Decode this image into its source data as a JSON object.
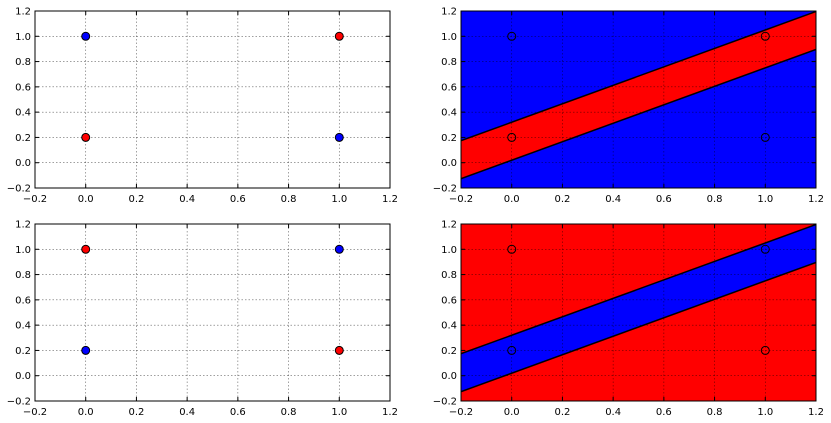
{
  "chart_data": [
    {
      "type": "scatter",
      "xlim": [
        -0.2,
        1.2
      ],
      "ylim": [
        -0.2,
        1.2
      ],
      "xticks": [
        "−0.2",
        "0.0",
        "0.2",
        "0.4",
        "0.6",
        "0.8",
        "1.0",
        "1.2"
      ],
      "yticks": [
        "−0.2",
        "0.0",
        "0.2",
        "0.4",
        "0.6",
        "0.8",
        "1.0",
        "1.2"
      ],
      "grid": true,
      "points": [
        {
          "x": 0.0,
          "y": 1.0,
          "color": "#0000ff"
        },
        {
          "x": 1.0,
          "y": 1.0,
          "color": "#ff0000"
        },
        {
          "x": 0.0,
          "y": 0.2,
          "color": "#ff0000"
        },
        {
          "x": 1.0,
          "y": 0.2,
          "color": "#0000ff"
        }
      ]
    },
    {
      "type": "area",
      "xlim": [
        -0.2,
        1.2
      ],
      "ylim": [
        -0.2,
        1.2
      ],
      "xticks": [
        "−0.2",
        "0.0",
        "0.2",
        "0.4",
        "0.6",
        "0.8",
        "1.0",
        "1.2"
      ],
      "yticks": [
        "−0.2",
        "0.0",
        "0.2",
        "0.4",
        "0.6",
        "0.8",
        "1.0",
        "1.2"
      ],
      "grid": true,
      "background_color": "#0000ff",
      "band_color": "#ff0000",
      "band_lines": [
        {
          "slope": 0.73,
          "intercept": 0.32
        },
        {
          "slope": 0.73,
          "intercept": 0.02
        }
      ],
      "points": [
        {
          "x": 0.0,
          "y": 1.0
        },
        {
          "x": 1.0,
          "y": 1.0
        },
        {
          "x": 0.0,
          "y": 0.2
        },
        {
          "x": 1.0,
          "y": 0.2
        }
      ]
    },
    {
      "type": "scatter",
      "xlim": [
        -0.2,
        1.2
      ],
      "ylim": [
        -0.2,
        1.2
      ],
      "xticks": [
        "−0.2",
        "0.0",
        "0.2",
        "0.4",
        "0.6",
        "0.8",
        "1.0",
        "1.2"
      ],
      "yticks": [
        "−0.2",
        "0.0",
        "0.2",
        "0.4",
        "0.6",
        "0.8",
        "1.0",
        "1.2"
      ],
      "grid": true,
      "points": [
        {
          "x": 0.0,
          "y": 1.0,
          "color": "#ff0000"
        },
        {
          "x": 1.0,
          "y": 1.0,
          "color": "#0000ff"
        },
        {
          "x": 0.0,
          "y": 0.2,
          "color": "#0000ff"
        },
        {
          "x": 1.0,
          "y": 0.2,
          "color": "#ff0000"
        }
      ]
    },
    {
      "type": "area",
      "xlim": [
        -0.2,
        1.2
      ],
      "ylim": [
        -0.2,
        1.2
      ],
      "xticks": [
        "−0.2",
        "0.0",
        "0.2",
        "0.4",
        "0.6",
        "0.8",
        "1.0",
        "1.2"
      ],
      "yticks": [
        "−0.2",
        "0.0",
        "0.2",
        "0.4",
        "0.6",
        "0.8",
        "1.0",
        "1.2"
      ],
      "grid": true,
      "background_color": "#ff0000",
      "band_color": "#0000ff",
      "band_lines": [
        {
          "slope": 0.73,
          "intercept": 0.32
        },
        {
          "slope": 0.73,
          "intercept": 0.02
        }
      ],
      "points": [
        {
          "x": 0.0,
          "y": 1.0
        },
        {
          "x": 1.0,
          "y": 1.0
        },
        {
          "x": 0.0,
          "y": 0.2
        },
        {
          "x": 1.0,
          "y": 0.2
        }
      ]
    }
  ]
}
